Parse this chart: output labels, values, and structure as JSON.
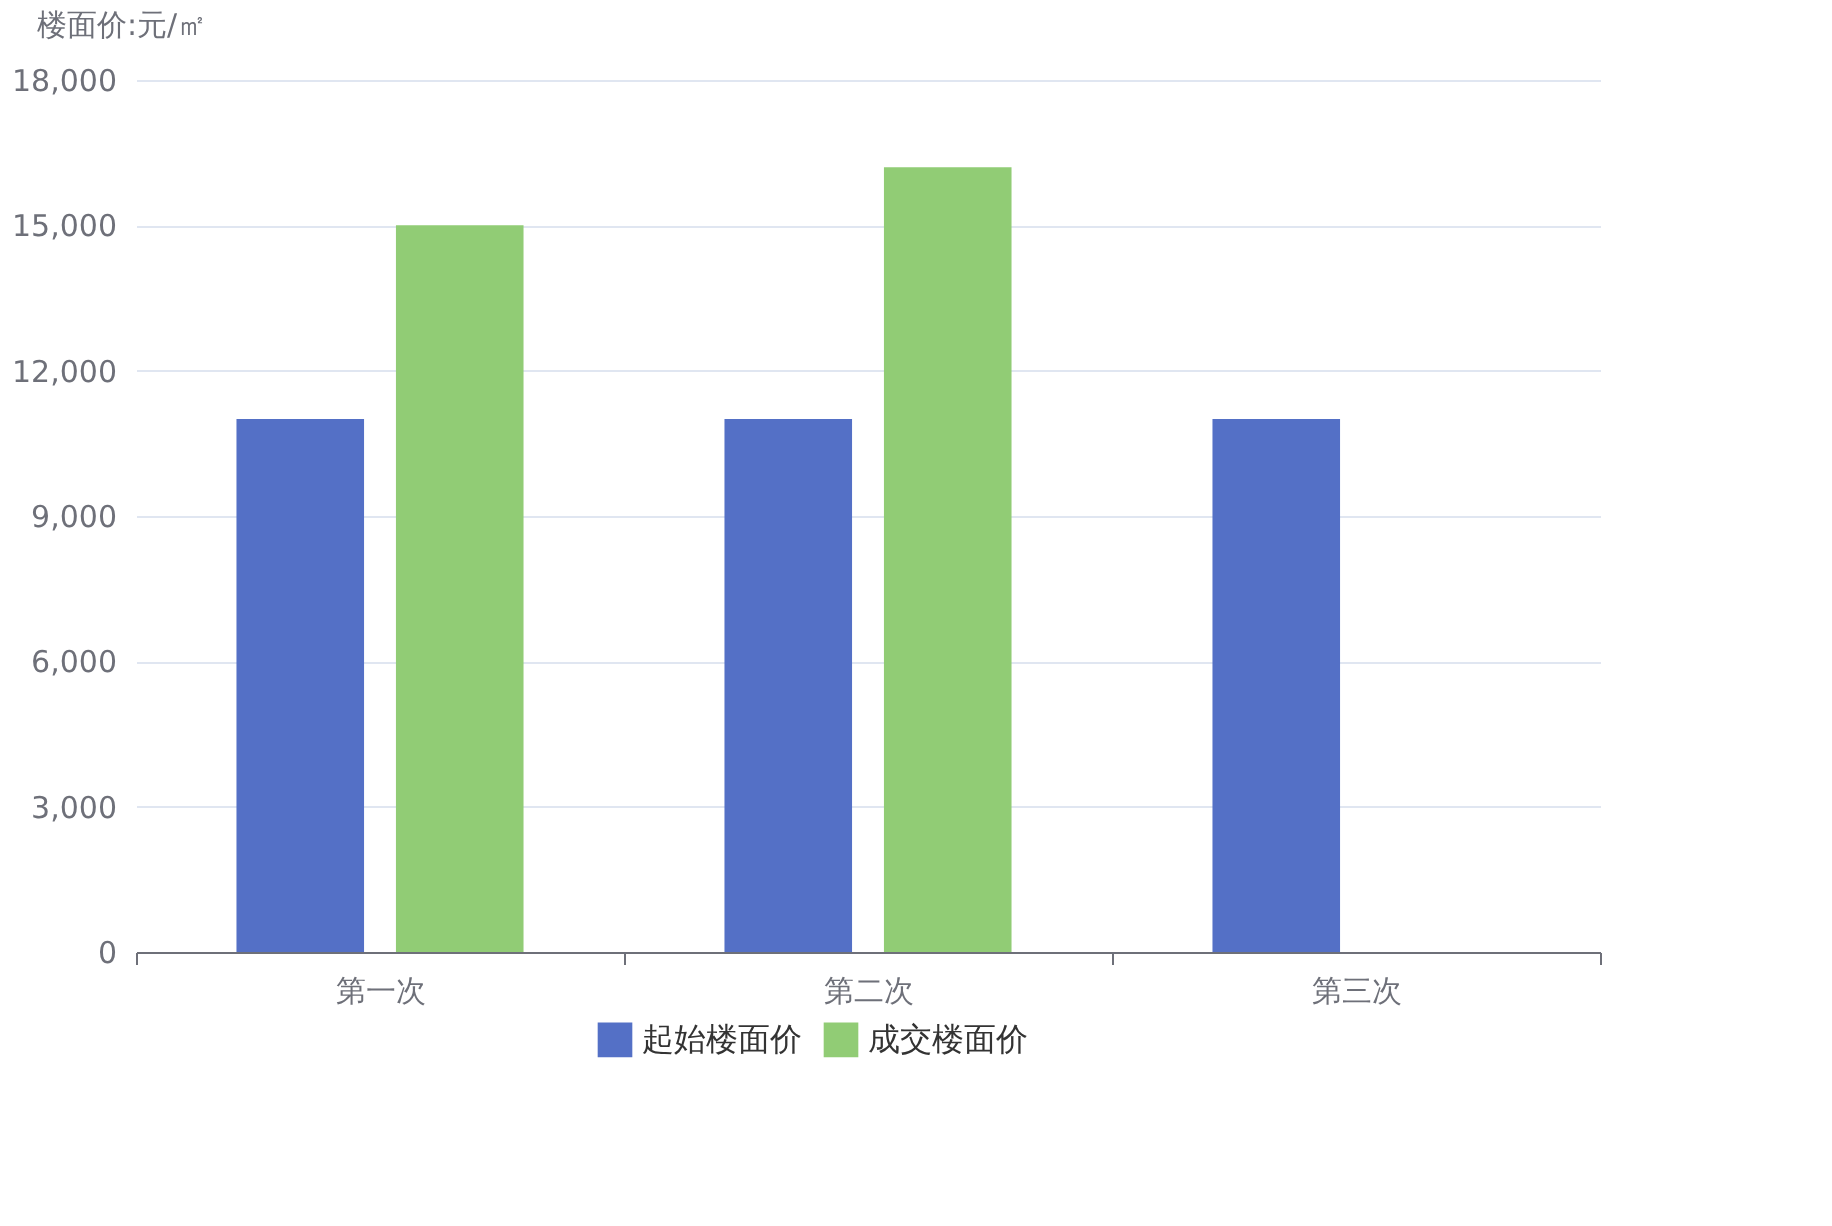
{
  "chart_data": {
    "type": "bar",
    "ylabel": "楼面价:元/㎡",
    "categories": [
      "第一次",
      "第二次",
      "第三次"
    ],
    "series": [
      {
        "name": "起始楼面价",
        "color": "#5470c6",
        "values": [
          11000,
          11000,
          11000
        ]
      },
      {
        "name": "成交楼面价",
        "color": "#91cc75",
        "values": [
          15000,
          16200,
          null
        ]
      }
    ],
    "ylim": [
      0,
      18000
    ],
    "yticks": [
      0,
      {
        "value": 3000,
        "label": "3,000"
      },
      {
        "value": 6000,
        "label": "6,000"
      },
      {
        "value": 9000,
        "label": "9,000"
      },
      {
        "value": 12000,
        "label": "12,000"
      },
      {
        "value": 15000,
        "label": "15,000"
      },
      {
        "value": 18000,
        "label": "18,000"
      }
    ],
    "grid": "y",
    "legend": "bottom"
  }
}
